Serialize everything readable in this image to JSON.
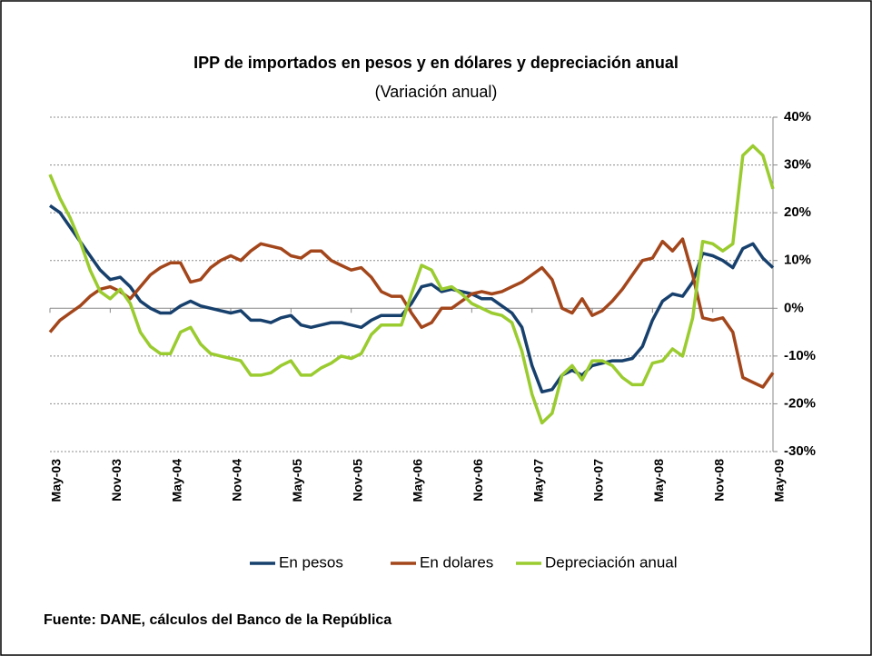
{
  "chart_data": {
    "type": "line",
    "title": "IPP de importados en pesos y en dólares y depreciación anual",
    "subtitle": "(Variación anual)",
    "note": "Fuente: DANE, cálculos del Banco de la República",
    "categories": [
      "May-03",
      null,
      null,
      null,
      null,
      null,
      "Nov-03",
      null,
      null,
      null,
      null,
      null,
      "May-04",
      null,
      null,
      null,
      null,
      null,
      "Nov-04",
      null,
      null,
      null,
      null,
      null,
      "May-05",
      null,
      null,
      null,
      null,
      null,
      "Nov-05",
      null,
      null,
      null,
      null,
      null,
      "May-06",
      null,
      null,
      null,
      null,
      null,
      "Nov-06",
      null,
      null,
      null,
      null,
      null,
      "May-07",
      null,
      null,
      null,
      null,
      null,
      "Nov-07",
      null,
      null,
      null,
      null,
      null,
      "May-08",
      null,
      null,
      null,
      null,
      null,
      "Nov-08",
      null,
      null,
      null,
      null,
      null,
      "May-09"
    ],
    "series": [
      {
        "name": "En pesos",
        "color": "#17406d",
        "values": [
          21.5,
          20,
          17,
          14,
          11,
          8,
          6,
          6.5,
          4.5,
          1.5,
          0,
          -1,
          -1,
          0.5,
          1.5,
          0.5,
          0,
          -0.5,
          -1,
          -0.5,
          -2.5,
          -2.5,
          -3,
          -2,
          -1.5,
          -3.5,
          -4,
          -3.5,
          -3,
          -3,
          -3.5,
          -4,
          -2.5,
          -1.5,
          -1.5,
          -1.5,
          1,
          4.5,
          5,
          3.5,
          4,
          3.5,
          3,
          2,
          2,
          0.5,
          -1,
          -4,
          -12,
          -17.5,
          -17,
          -14,
          -13,
          -14,
          -12,
          -11.5,
          -11,
          -11,
          -10.5,
          -8,
          -2.5,
          1.5,
          3,
          2.5,
          5.5,
          11.5,
          11,
          10,
          8.5,
          12.5,
          13.5,
          10.5,
          8.5
        ]
      },
      {
        "name": "En dolares",
        "color": "#a3461b",
        "values": [
          -5,
          -2.5,
          -1,
          0.5,
          2.5,
          4,
          4.5,
          3.5,
          2,
          4.5,
          7,
          8.5,
          9.5,
          9.5,
          5.5,
          6,
          8.5,
          10,
          11,
          10,
          12,
          13.5,
          13,
          12.5,
          11,
          10.5,
          12,
          12,
          10,
          9,
          8,
          8.5,
          6.5,
          3.5,
          2.5,
          2.5,
          -1,
          -4,
          -3,
          0,
          0,
          1.5,
          3,
          3.5,
          3,
          3.5,
          4.5,
          5.5,
          7,
          8.5,
          6,
          0,
          -1,
          2,
          -1.5,
          -0.5,
          1.5,
          4,
          7,
          10,
          10.5,
          14,
          12,
          14.5,
          7,
          -2,
          -2.5,
          -2,
          -5,
          -14.5,
          -15.5,
          -16.5,
          -13.5
        ]
      },
      {
        "name": "Depreciación anual",
        "color": "#9acb2f",
        "values": [
          28,
          23,
          19,
          14,
          8,
          3.5,
          2,
          4,
          1,
          -5,
          -8,
          -9.5,
          -9.5,
          -5,
          -4,
          -7.5,
          -9.5,
          -10,
          -10.5,
          -11,
          -14,
          -14,
          -13.5,
          -12,
          -11,
          -14,
          -14,
          -12.5,
          -11.5,
          -10,
          -10.5,
          -9.5,
          -5.5,
          -3.5,
          -3.5,
          -3.5,
          3,
          9,
          8,
          4,
          4.5,
          3,
          1,
          0,
          -1,
          -1.5,
          -3,
          -9,
          -18,
          -24,
          -22,
          -14,
          -12,
          -15,
          -11,
          -11,
          -12,
          -14.5,
          -16,
          -16,
          -11.5,
          -11,
          -8.5,
          -10,
          -2,
          14,
          13.5,
          12,
          13.5,
          32,
          34,
          32,
          25
        ]
      }
    ],
    "ylim": [
      -30,
      40
    ],
    "yticks": [
      {
        "value": -30,
        "label": "-30%"
      },
      {
        "value": -20,
        "label": "-20%"
      },
      {
        "value": -10,
        "label": "-10%"
      },
      {
        "value": 0,
        "label": "0%"
      },
      {
        "value": 10,
        "label": "10%"
      },
      {
        "value": 20,
        "label": "20%"
      },
      {
        "value": 30,
        "label": "30%"
      },
      {
        "value": 40,
        "label": "40%"
      }
    ],
    "grid": true,
    "legend": "bottom"
  }
}
